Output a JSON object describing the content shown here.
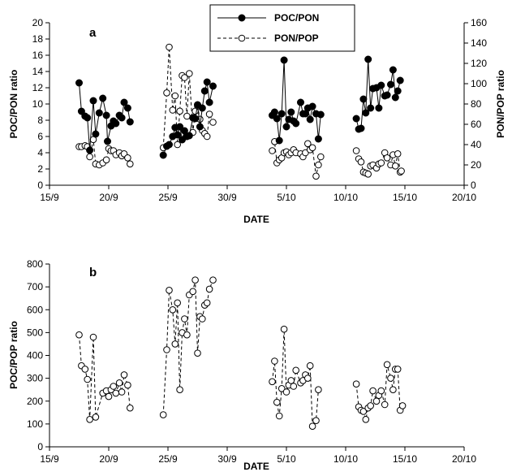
{
  "chart_data": [
    {
      "panel_label": "a",
      "type": "line",
      "xlabel": "DATE",
      "ylabel_left": "POC/PON ratio",
      "ylabel_right": "PON/POP ratio",
      "x_ticks": [
        "15/9",
        "20/9",
        "25/9",
        "30/9",
        "5/10",
        "10/10",
        "15/10",
        "20/10"
      ],
      "x_tick_days": [
        15,
        20,
        25,
        30,
        35,
        40,
        45,
        50
      ],
      "xlim": [
        15,
        50
      ],
      "ylim_left": [
        0,
        20
      ],
      "y_ticks_left": [
        0,
        2,
        4,
        6,
        8,
        10,
        12,
        14,
        16,
        18,
        20
      ],
      "ylim_right": [
        0,
        160
      ],
      "y_ticks_right": [
        0,
        20,
        40,
        60,
        80,
        100,
        120,
        140,
        160
      ],
      "legend_position": "top-center",
      "series": [
        {
          "name": "POC/PON",
          "axis": "left",
          "style": "solid line, filled circles",
          "segments": [
            [
              [
                17.5,
                12.6
              ],
              [
                17.7,
                9.1
              ],
              [
                18.0,
                8.5
              ],
              [
                18.2,
                8.3
              ],
              [
                18.4,
                4.3
              ],
              [
                18.7,
                10.4
              ],
              [
                18.9,
                6.3
              ],
              [
                19.2,
                8.9
              ],
              [
                19.5,
                10.7
              ],
              [
                19.8,
                8.6
              ],
              [
                19.9,
                5.4
              ],
              [
                20.2,
                7.3
              ],
              [
                20.4,
                7.9
              ],
              [
                20.6,
                7.6
              ],
              [
                20.9,
                8.6
              ],
              [
                21.1,
                8.3
              ],
              [
                21.3,
                10.2
              ],
              [
                21.6,
                9.5
              ],
              [
                21.8,
                7.8
              ]
            ],
            [
              [
                24.6,
                3.7
              ],
              [
                24.9,
                4.8
              ],
              [
                25.1,
                5.0
              ],
              [
                25.4,
                6.0
              ],
              [
                25.6,
                7.1
              ],
              [
                25.8,
                6.2
              ],
              [
                26.0,
                7.2
              ],
              [
                26.2,
                5.6
              ],
              [
                26.4,
                6.7
              ],
              [
                26.6,
                6.0
              ],
              [
                26.8,
                6.1
              ],
              [
                27.1,
                8.3
              ],
              [
                27.3,
                8.2
              ],
              [
                27.5,
                9.9
              ],
              [
                27.7,
                7.2
              ],
              [
                27.9,
                9.5
              ],
              [
                28.1,
                11.6
              ],
              [
                28.3,
                12.7
              ],
              [
                28.5,
                10.2
              ],
              [
                28.8,
                12.2
              ]
            ],
            [
              [
                33.8,
                8.6
              ],
              [
                34.0,
                9.0
              ],
              [
                34.2,
                8.2
              ],
              [
                34.4,
                5.5
              ],
              [
                34.6,
                8.8
              ],
              [
                34.8,
                15.4
              ],
              [
                35.0,
                7.2
              ],
              [
                35.2,
                8.1
              ],
              [
                35.4,
                9.0
              ],
              [
                35.6,
                7.9
              ],
              [
                35.8,
                7.6
              ],
              [
                36.2,
                10.2
              ],
              [
                36.4,
                8.8
              ],
              [
                36.6,
                8.8
              ],
              [
                36.8,
                9.5
              ],
              [
                37.0,
                8.1
              ],
              [
                37.2,
                9.7
              ],
              [
                37.5,
                8.8
              ],
              [
                37.7,
                5.7
              ],
              [
                37.9,
                8.7
              ]
            ],
            [
              [
                40.9,
                8.2
              ],
              [
                41.1,
                6.9
              ],
              [
                41.3,
                7.0
              ],
              [
                41.5,
                10.6
              ],
              [
                41.7,
                8.9
              ],
              [
                41.9,
                15.5
              ],
              [
                42.1,
                9.5
              ],
              [
                42.3,
                11.9
              ],
              [
                42.6,
                12.0
              ],
              [
                42.8,
                9.5
              ],
              [
                43.0,
                12.3
              ],
              [
                43.3,
                11.0
              ],
              [
                43.5,
                11.1
              ],
              [
                43.8,
                12.4
              ],
              [
                44.0,
                14.2
              ],
              [
                44.2,
                10.8
              ],
              [
                44.4,
                11.6
              ],
              [
                44.6,
                12.9
              ]
            ]
          ]
        },
        {
          "name": "PON/POP",
          "axis": "right",
          "style": "dashed line, open circles",
          "segments": [
            [
              [
                17.5,
                38
              ],
              [
                17.7,
                38
              ],
              [
                18.0,
                39
              ],
              [
                18.2,
                38
              ],
              [
                18.4,
                28
              ],
              [
                18.7,
                45
              ],
              [
                18.9,
                21
              ],
              [
                19.2,
                20
              ],
              [
                19.5,
                22
              ],
              [
                19.8,
                25
              ],
              [
                20.0,
                36
              ],
              [
                20.2,
                34
              ],
              [
                20.4,
                34
              ],
              [
                20.6,
                30
              ],
              [
                20.9,
                32
              ],
              [
                21.1,
                29
              ],
              [
                21.3,
                31
              ],
              [
                21.6,
                27
              ],
              [
                21.8,
                21
              ]
            ],
            [
              [
                24.6,
                37
              ],
              [
                24.9,
                91
              ],
              [
                25.1,
                136
              ],
              [
                25.4,
                74
              ],
              [
                25.6,
                88
              ],
              [
                25.8,
                40
              ],
              [
                26.0,
                73
              ],
              [
                26.2,
                108
              ],
              [
                26.4,
                106
              ],
              [
                26.6,
                68
              ],
              [
                26.8,
                110
              ],
              [
                27.1,
                52
              ],
              [
                27.3,
                73
              ],
              [
                27.5,
                78
              ],
              [
                27.7,
                65
              ],
              [
                27.9,
                54
              ],
              [
                28.1,
                51
              ],
              [
                28.3,
                48
              ],
              [
                28.5,
                70
              ],
              [
                28.8,
                62
              ]
            ],
            [
              [
                33.8,
                34
              ],
              [
                34.0,
                43
              ],
              [
                34.2,
                22
              ],
              [
                34.4,
                25
              ],
              [
                34.6,
                27
              ],
              [
                34.8,
                32
              ],
              [
                35.0,
                33
              ],
              [
                35.2,
                30
              ],
              [
                35.4,
                32
              ],
              [
                35.6,
                35
              ],
              [
                35.8,
                32
              ],
              [
                36.2,
                31
              ],
              [
                36.4,
                28
              ],
              [
                36.6,
                32
              ],
              [
                36.8,
                41
              ],
              [
                37.0,
                35
              ],
              [
                37.2,
                37
              ],
              [
                37.5,
                9
              ],
              [
                37.7,
                20
              ],
              [
                37.9,
                28
              ]
            ],
            [
              [
                40.9,
                34
              ],
              [
                41.1,
                26
              ],
              [
                41.3,
                23
              ],
              [
                41.5,
                13
              ],
              [
                41.7,
                12
              ],
              [
                41.9,
                11
              ],
              [
                42.1,
                19
              ],
              [
                42.3,
                20
              ],
              [
                42.6,
                17
              ],
              [
                42.8,
                21
              ],
              [
                43.0,
                22
              ],
              [
                43.3,
                32
              ],
              [
                43.5,
                27
              ],
              [
                43.8,
                20
              ],
              [
                44.0,
                30
              ],
              [
                44.2,
                19
              ],
              [
                44.4,
                31
              ],
              [
                44.6,
                13
              ],
              [
                44.7,
                14
              ]
            ]
          ]
        }
      ]
    },
    {
      "panel_label": "b",
      "type": "line",
      "xlabel": "DATE",
      "ylabel": "POC/POP ratio",
      "x_ticks": [
        "15/9",
        "20/9",
        "25/9",
        "30/9",
        "5/10",
        "10/10",
        "15/10",
        "20/10"
      ],
      "x_tick_days": [
        15,
        20,
        25,
        30,
        35,
        40,
        45,
        50
      ],
      "xlim": [
        15,
        50
      ],
      "ylim": [
        0,
        800
      ],
      "y_ticks": [
        0,
        100,
        200,
        300,
        400,
        500,
        600,
        700,
        800
      ],
      "series": [
        {
          "style": "dashed line, open circles",
          "segments": [
            [
              [
                17.5,
                490
              ],
              [
                17.7,
                355
              ],
              [
                18.0,
                340
              ],
              [
                18.2,
                295
              ],
              [
                18.4,
                120
              ],
              [
                18.7,
                480
              ],
              [
                18.9,
                130
              ],
              [
                19.5,
                235
              ],
              [
                19.8,
                245
              ],
              [
                20.0,
                220
              ],
              [
                20.2,
                250
              ],
              [
                20.4,
                265
              ],
              [
                20.6,
                235
              ],
              [
                20.9,
                280
              ],
              [
                21.1,
                240
              ],
              [
                21.3,
                315
              ],
              [
                21.6,
                270
              ],
              [
                21.8,
                170
              ]
            ],
            [
              [
                24.6,
                140
              ],
              [
                24.9,
                425
              ],
              [
                25.1,
                685
              ],
              [
                25.4,
                600
              ],
              [
                25.6,
                450
              ],
              [
                25.8,
                630
              ],
              [
                26.0,
                250
              ],
              [
                26.2,
                500
              ],
              [
                26.4,
                560
              ],
              [
                26.6,
                490
              ],
              [
                26.8,
                665
              ],
              [
                27.1,
                680
              ],
              [
                27.3,
                730
              ],
              [
                27.5,
                410
              ],
              [
                27.7,
                570
              ],
              [
                27.9,
                560
              ],
              [
                28.1,
                620
              ],
              [
                28.3,
                630
              ],
              [
                28.5,
                690
              ],
              [
                28.8,
                730
              ]
            ],
            [
              [
                33.8,
                285
              ],
              [
                34.0,
                375
              ],
              [
                34.2,
                195
              ],
              [
                34.4,
                135
              ],
              [
                34.6,
                255
              ],
              [
                34.8,
                515
              ],
              [
                35.0,
                240
              ],
              [
                35.2,
                270
              ],
              [
                35.4,
                290
              ],
              [
                35.6,
                265
              ],
              [
                35.8,
                335
              ],
              [
                36.2,
                280
              ],
              [
                36.4,
                290
              ],
              [
                36.6,
                315
              ],
              [
                36.8,
                300
              ],
              [
                37.0,
                355
              ],
              [
                37.2,
                90
              ],
              [
                37.5,
                115
              ],
              [
                37.7,
                250
              ]
            ],
            [
              [
                40.9,
                275
              ],
              [
                41.1,
                175
              ],
              [
                41.3,
                160
              ],
              [
                41.5,
                155
              ],
              [
                41.7,
                120
              ],
              [
                41.9,
                170
              ],
              [
                42.1,
                180
              ],
              [
                42.3,
                245
              ],
              [
                42.6,
                200
              ],
              [
                42.8,
                225
              ],
              [
                43.0,
                245
              ],
              [
                43.3,
                185
              ],
              [
                43.5,
                360
              ],
              [
                43.8,
                300
              ],
              [
                44.0,
                250
              ],
              [
                44.2,
                340
              ],
              [
                44.4,
                340
              ],
              [
                44.6,
                160
              ],
              [
                44.8,
                180
              ]
            ]
          ]
        }
      ]
    }
  ]
}
